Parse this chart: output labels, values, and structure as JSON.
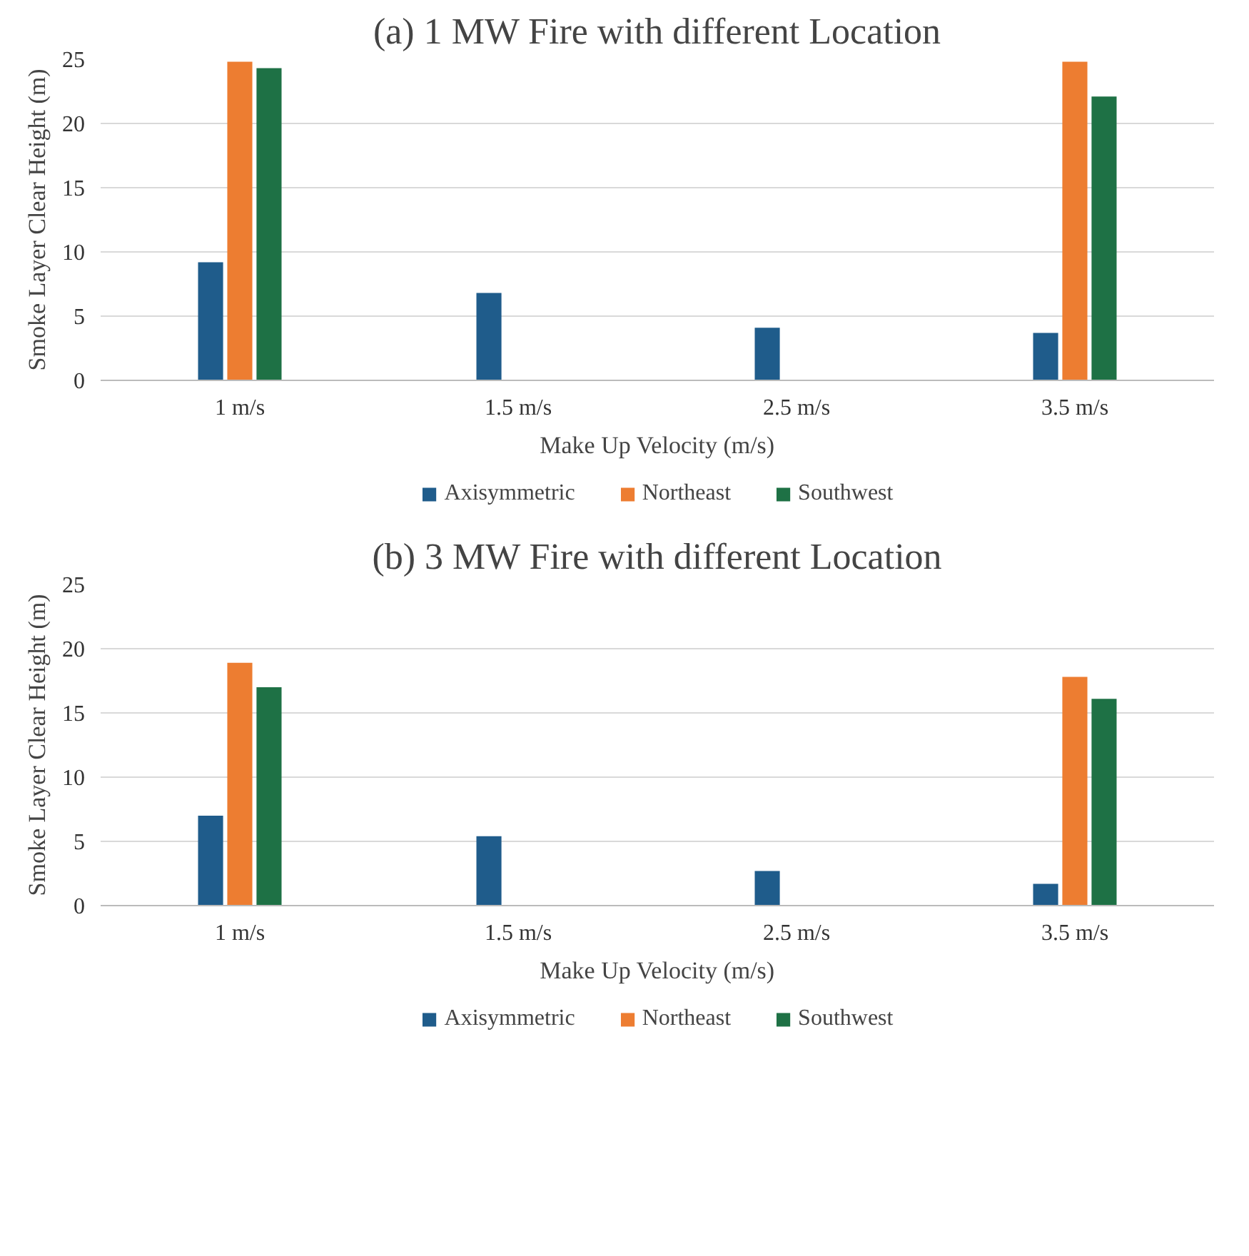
{
  "chart_data": [
    {
      "type": "bar",
      "title": "(a) 1 MW Fire with different Location",
      "xlabel": "Make Up Velocity (m/s)",
      "ylabel": "Smoke Layer Clear Height (m)",
      "categories": [
        "1 m/s",
        "1.5 m/s",
        "2.5 m/s",
        "3.5 m/s"
      ],
      "ylim": [
        0,
        25
      ],
      "yticks": [
        0,
        5,
        10,
        15,
        20,
        25
      ],
      "grid": "y",
      "legend": "bottom",
      "series": [
        {
          "name": "Axisymmetric",
          "color": "#1f5c8b",
          "values": [
            9.2,
            6.8,
            4.1,
            3.7
          ]
        },
        {
          "name": "Northeast",
          "color": "#ed7d31",
          "values": [
            24.8,
            null,
            null,
            24.8
          ]
        },
        {
          "name": "Southwest",
          "color": "#1e7145",
          "values": [
            24.3,
            null,
            null,
            22.1
          ]
        }
      ]
    },
    {
      "type": "bar",
      "title": "(b) 3 MW Fire with different Location",
      "xlabel": "Make Up Velocity (m/s)",
      "ylabel": "Smoke Layer Clear Height (m)",
      "categories": [
        "1 m/s",
        "1.5 m/s",
        "2.5 m/s",
        "3.5 m/s"
      ],
      "ylim": [
        0,
        25
      ],
      "yticks": [
        0,
        5,
        10,
        15,
        20,
        25
      ],
      "grid": "y",
      "legend": "bottom",
      "series": [
        {
          "name": "Axisymmetric",
          "color": "#1f5c8b",
          "values": [
            7.0,
            5.4,
            2.7,
            1.7
          ]
        },
        {
          "name": "Northeast",
          "color": "#ed7d31",
          "values": [
            18.9,
            null,
            null,
            17.8
          ]
        },
        {
          "name": "Southwest",
          "color": "#1e7145",
          "values": [
            17.0,
            null,
            null,
            16.1
          ]
        }
      ]
    }
  ]
}
